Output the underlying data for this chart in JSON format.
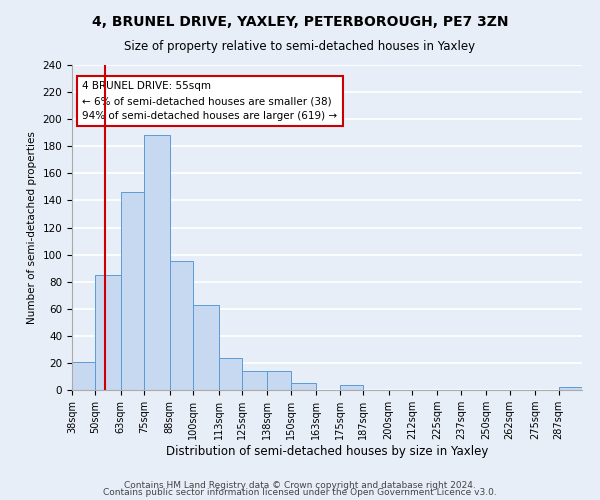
{
  "title": "4, BRUNEL DRIVE, YAXLEY, PETERBOROUGH, PE7 3ZN",
  "subtitle": "Size of property relative to semi-detached houses in Yaxley",
  "xlabel": "Distribution of semi-detached houses by size in Yaxley",
  "ylabel": "Number of semi-detached properties",
  "bin_edges": [
    38,
    50,
    63,
    75,
    88,
    100,
    113,
    125,
    138,
    150,
    163,
    175,
    187,
    200,
    212,
    225,
    237,
    250,
    262,
    275,
    287,
    299
  ],
  "bar_heights": [
    21,
    85,
    146,
    188,
    95,
    63,
    24,
    14,
    14,
    5,
    0,
    4,
    0,
    0,
    0,
    0,
    0,
    0,
    0,
    0,
    2
  ],
  "bar_color": "#c6d9f0",
  "bar_edgecolor": "#5b9bd5",
  "x_tick_labels": [
    "38sqm",
    "50sqm",
    "63sqm",
    "75sqm",
    "88sqm",
    "100sqm",
    "113sqm",
    "125sqm",
    "138sqm",
    "150sqm",
    "163sqm",
    "175sqm",
    "187sqm",
    "200sqm",
    "212sqm",
    "225sqm",
    "237sqm",
    "250sqm",
    "262sqm",
    "275sqm",
    "287sqm"
  ],
  "vline_x": 55,
  "vline_color": "#cc0000",
  "ylim": [
    0,
    240
  ],
  "yticks": [
    0,
    20,
    40,
    60,
    80,
    100,
    120,
    140,
    160,
    180,
    200,
    220,
    240
  ],
  "annotation_text": "4 BRUNEL DRIVE: 55sqm\n← 6% of semi-detached houses are smaller (38)\n94% of semi-detached houses are larger (619) →",
  "annotation_box_edgecolor": "#cc0000",
  "footer_line1": "Contains HM Land Registry data © Crown copyright and database right 2024.",
  "footer_line2": "Contains public sector information licensed under the Open Government Licence v3.0.",
  "background_color": "#e8eef7",
  "grid_color": "#ffffff",
  "title_fontsize": 10,
  "subtitle_fontsize": 8.5,
  "xlabel_fontsize": 8.5,
  "ylabel_fontsize": 7.5
}
